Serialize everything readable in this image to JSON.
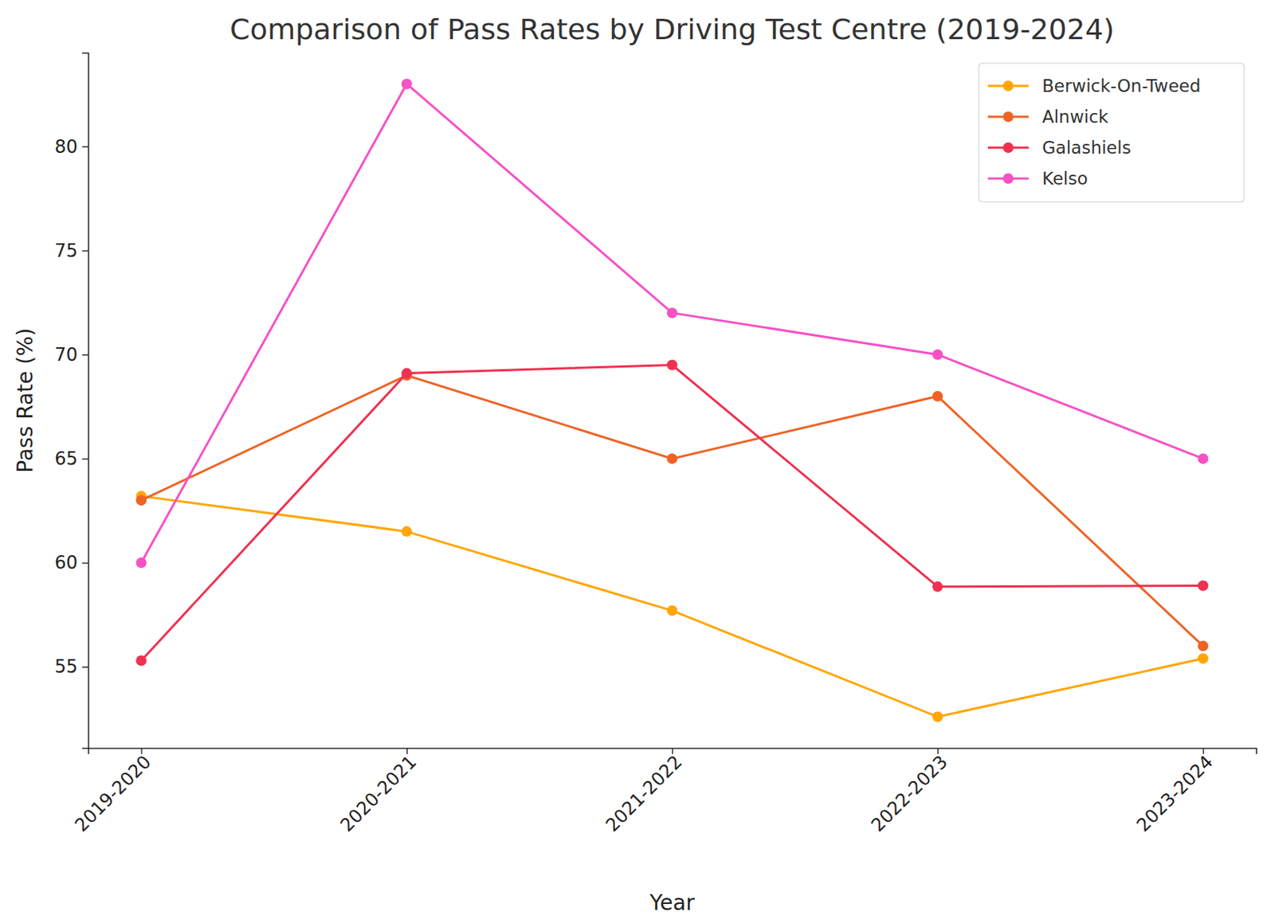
{
  "chart_data": {
    "type": "line",
    "title": "Comparison of Pass Rates by Driving Test Centre (2019-2024)",
    "x_label": "Year",
    "y_label": "Pass Rate (%)",
    "categories": [
      "2019-2020",
      "2020-2021",
      "2021-2022",
      "2022-2023",
      "2023-2024"
    ],
    "series": [
      {
        "name": "Berwick-On-Tweed",
        "color": "#ffa600",
        "marker": "circle",
        "values": [
          63.2,
          61.5,
          57.7,
          52.6,
          55.4
        ]
      },
      {
        "name": "Alnwick",
        "color": "#ef6325",
        "marker": "circle",
        "values": [
          63,
          69,
          65,
          68,
          56
        ]
      },
      {
        "name": "Galashiels",
        "color": "#f03050",
        "marker": "circle",
        "values": [
          55.3,
          69.1,
          69.5,
          58.85,
          58.9
        ]
      },
      {
        "name": "Kelso",
        "color": "#f751c6",
        "marker": "circle",
        "values": [
          60,
          83,
          72,
          70,
          65
        ]
      }
    ],
    "ylim": [
      51.1,
      84.5
    ],
    "yticks": [
      55,
      60,
      65,
      70,
      75,
      80
    ],
    "grid": false,
    "legend": "upper right"
  }
}
